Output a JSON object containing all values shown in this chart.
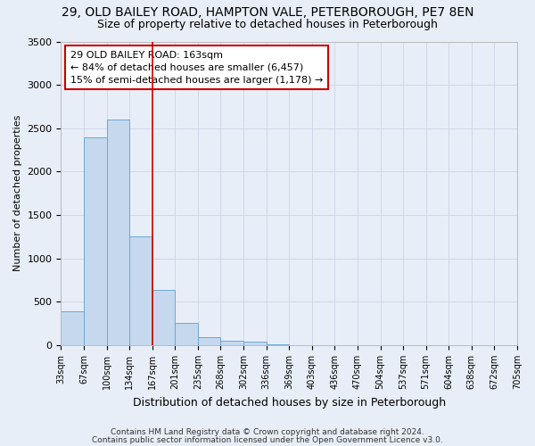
{
  "title_line1": "29, OLD BAILEY ROAD, HAMPTON VALE, PETERBOROUGH, PE7 8EN",
  "title_line2": "Size of property relative to detached houses in Peterborough",
  "xlabel": "Distribution of detached houses by size in Peterborough",
  "ylabel": "Number of detached properties",
  "bar_values": [
    390,
    2400,
    2600,
    1250,
    640,
    260,
    95,
    55,
    40,
    15,
    0,
    0,
    0,
    0,
    0,
    0,
    0,
    0,
    0,
    0
  ],
  "categories": [
    "33sqm",
    "67sqm",
    "100sqm",
    "134sqm",
    "167sqm",
    "201sqm",
    "235sqm",
    "268sqm",
    "302sqm",
    "336sqm",
    "369sqm",
    "403sqm",
    "436sqm",
    "470sqm",
    "504sqm",
    "537sqm",
    "571sqm",
    "604sqm",
    "638sqm",
    "672sqm",
    "705sqm"
  ],
  "bar_color": "#c5d8ee",
  "bar_edge_color": "#6aaad4",
  "grid_color": "#d0d8e8",
  "background_color": "#e8eef8",
  "red_line_x": 4,
  "red_line_color": "#cc0000",
  "annotation_text": "29 OLD BAILEY ROAD: 163sqm\n← 84% of detached houses are smaller (6,457)\n15% of semi-detached houses are larger (1,178) →",
  "annotation_box_color": "#ffffff",
  "annotation_border_color": "#cc0000",
  "ylim": [
    0,
    3500
  ],
  "yticks": [
    0,
    500,
    1000,
    1500,
    2000,
    2500,
    3000,
    3500
  ],
  "footer1": "Contains HM Land Registry data © Crown copyright and database right 2024.",
  "footer2": "Contains public sector information licensed under the Open Government Licence v3.0."
}
